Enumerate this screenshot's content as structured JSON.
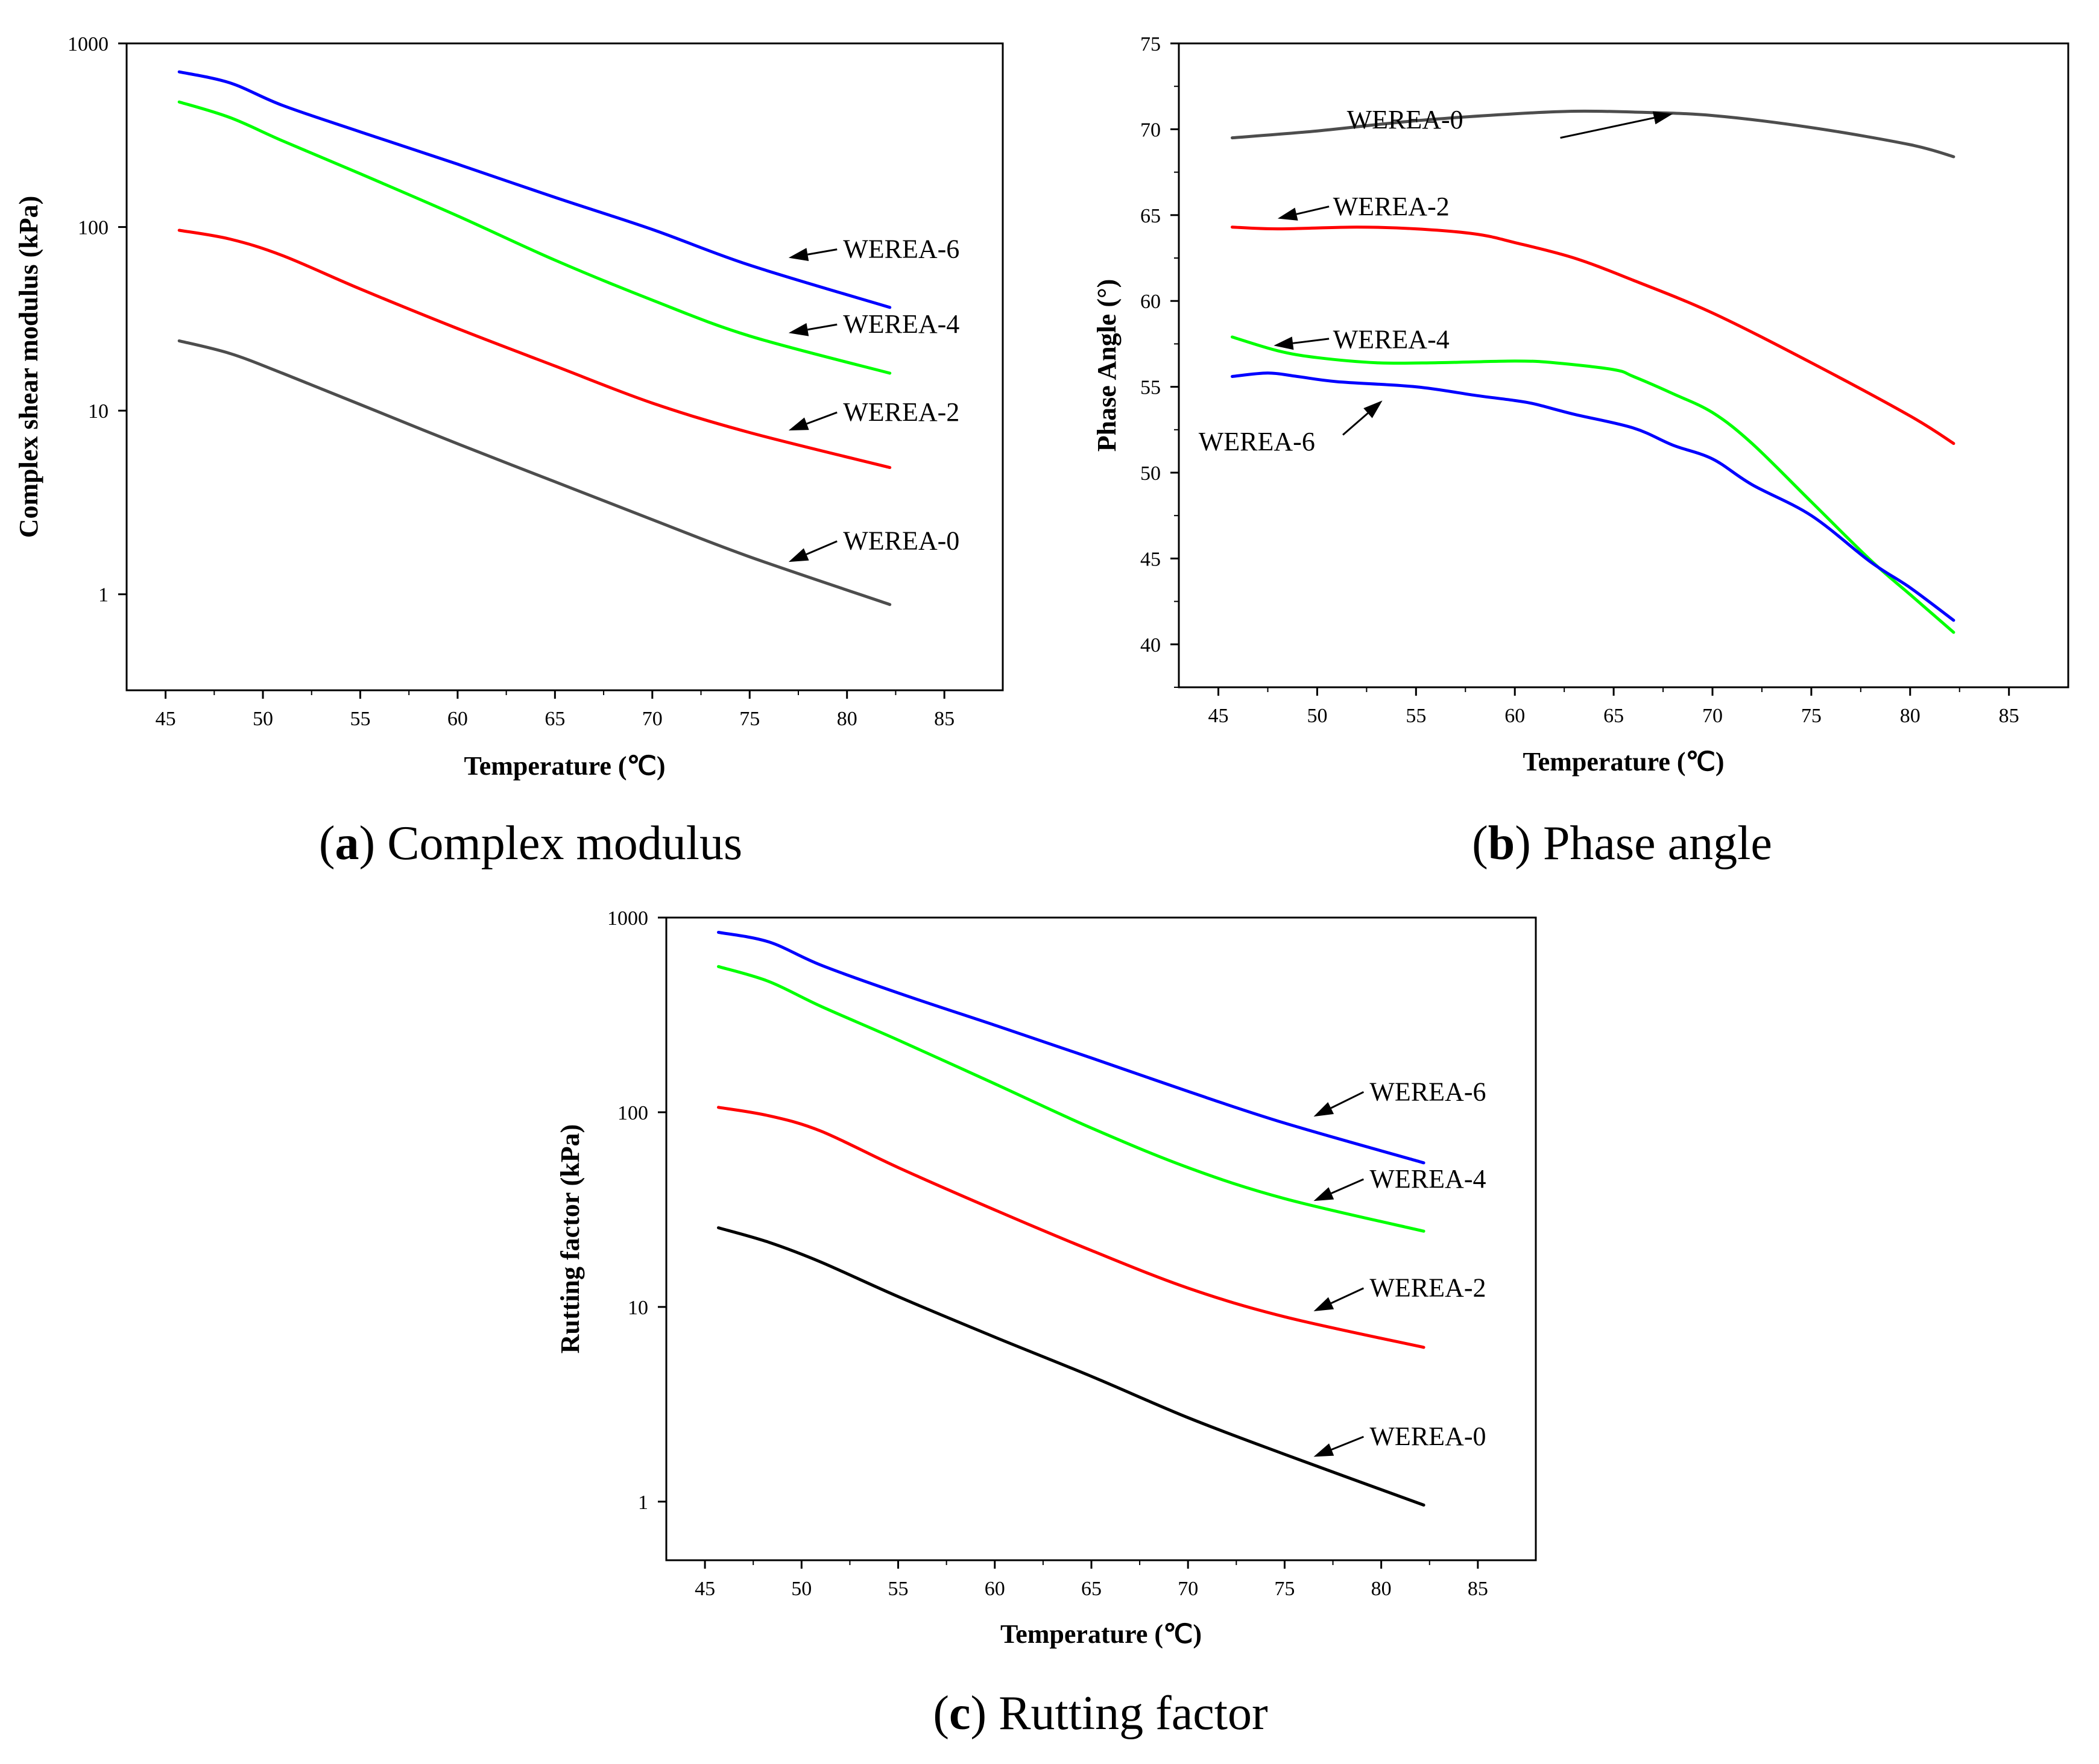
{
  "chart_data": [
    {
      "id": "a",
      "type": "line",
      "caption_letter": "a",
      "caption_text": "Complex modulus",
      "xlabel": "Temperature (℃)",
      "ylabel": "Complex shear modulus (kPa)",
      "yscale": "log",
      "xlim": [
        43,
        88
      ],
      "ylim": [
        0.3,
        1000
      ],
      "xticks": [
        45,
        50,
        55,
        60,
        65,
        70,
        75,
        80,
        85
      ],
      "yticks": [
        1,
        10,
        100,
        1000
      ],
      "series": [
        {
          "name": "WEREA-6",
          "color": "#0000ff",
          "x": [
            45.7,
            48.3,
            51,
            55,
            60,
            65,
            70,
            75,
            82.2
          ],
          "values": [
            700,
            610,
            460,
            330,
            220,
            145,
            97,
            62,
            36.5
          ],
          "label_at": [
            77,
            68
          ],
          "label_text_at": [
            79.8,
            68
          ]
        },
        {
          "name": "WEREA-4",
          "color": "#00ff00",
          "x": [
            45.7,
            48.3,
            51,
            55,
            60,
            65,
            70,
            75,
            82.2
          ],
          "values": [
            480,
            395,
            295,
            195,
            115,
            66,
            40,
            25.5,
            16
          ],
          "label_at": [
            77,
            26.5
          ],
          "label_text_at": [
            79.8,
            26.5
          ]
        },
        {
          "name": "WEREA-2",
          "color": "#ff0000",
          "x": [
            45.7,
            48.3,
            51,
            55,
            60,
            65,
            70,
            75,
            82.2
          ],
          "values": [
            96,
            86,
            70,
            46,
            28,
            17.5,
            11,
            7.6,
            4.9
          ],
          "label_at": [
            77,
            7.8
          ],
          "label_text_at": [
            79.8,
            8.8
          ]
        },
        {
          "name": "WEREA-0",
          "color": "#4d4d4d",
          "x": [
            45.7,
            48.3,
            51,
            55,
            60,
            65,
            70,
            75,
            82.2
          ],
          "values": [
            24,
            20.5,
            16,
            10.8,
            6.6,
            4.1,
            2.55,
            1.6,
            0.88
          ],
          "label_at": [
            77,
            1.5
          ],
          "label_text_at": [
            79.8,
            1.75
          ]
        }
      ]
    },
    {
      "id": "b",
      "type": "line",
      "caption_letter": "b",
      "caption_text": "Phase angle",
      "xlabel": "Temperature (℃)",
      "ylabel": "Phase Angle (°)",
      "yscale": "linear",
      "xlim": [
        43,
        88
      ],
      "ylim": [
        37.5,
        75
      ],
      "xticks": [
        45,
        50,
        55,
        60,
        65,
        70,
        75,
        80,
        85
      ],
      "yticks": [
        40,
        45,
        50,
        55,
        60,
        65,
        70,
        75
      ],
      "series": [
        {
          "name": "WEREA-0",
          "color": "#4d4d4d",
          "x": [
            45.7,
            50,
            55,
            60,
            63,
            66,
            70,
            75,
            80,
            82.2
          ],
          "values": [
            69.5,
            69.9,
            70.5,
            70.9,
            71.05,
            71.0,
            70.8,
            70.1,
            69.1,
            68.4
          ]
        },
        {
          "name": "WEREA-2",
          "color": "#ff0000",
          "x": [
            45.7,
            48,
            52,
            55,
            58,
            60,
            63,
            66,
            70,
            75,
            80,
            82.2
          ],
          "values": [
            64.3,
            64.2,
            64.3,
            64.2,
            63.9,
            63.4,
            62.5,
            61.2,
            59.3,
            56.4,
            53.3,
            51.7
          ]
        },
        {
          "name": "WEREA-4",
          "color": "#00ff00",
          "x": [
            45.7,
            48,
            50,
            53,
            56,
            60,
            62,
            65,
            66,
            68,
            70,
            72,
            75,
            78,
            80,
            82.2
          ],
          "values": [
            57.9,
            57.1,
            56.7,
            56.4,
            56.4,
            56.5,
            56.4,
            56.0,
            55.6,
            54.6,
            53.5,
            51.7,
            48.3,
            44.9,
            42.9,
            40.7
          ]
        },
        {
          "name": "WEREA-6",
          "color": "#0000ff",
          "x": [
            45.7,
            47.5,
            49,
            51,
            55,
            58,
            60,
            61,
            63,
            66,
            68,
            70,
            72,
            75,
            78,
            80,
            82.2
          ],
          "values": [
            55.6,
            55.8,
            55.6,
            55.3,
            55.0,
            54.5,
            54.2,
            54.0,
            53.4,
            52.6,
            51.6,
            50.8,
            49.3,
            47.5,
            44.8,
            43.3,
            41.4
          ]
        }
      ],
      "labels": [
        {
          "name": "WEREA-0",
          "text_at": [
            51.5,
            70.05
          ],
          "arrow_from": [
            62.3,
            69.5
          ],
          "arrow_to": [
            68,
            70.9
          ]
        },
        {
          "name": "WEREA-2",
          "text_at": [
            50.8,
            65.0
          ],
          "arrow_from": [
            50.6,
            65.5
          ],
          "arrow_to": [
            48,
            64.8
          ]
        },
        {
          "name": "WEREA-4",
          "text_at": [
            50.8,
            57.25
          ],
          "arrow_from": [
            50.6,
            57.8
          ],
          "arrow_to": [
            47.8,
            57.4
          ]
        },
        {
          "name": "WEREA-6",
          "text_at": [
            44,
            51.3
          ],
          "arrow_from": [
            51.3,
            52.2
          ],
          "arrow_to": [
            53.3,
            54.2
          ]
        }
      ]
    },
    {
      "id": "c",
      "type": "line",
      "caption_letter": "c",
      "caption_text": "Rutting factor",
      "xlabel": "Temperature (℃)",
      "ylabel": "Rutting factor (kPa)",
      "yscale": "log",
      "xlim": [
        43,
        88
      ],
      "ylim": [
        0.5,
        1000
      ],
      "xticks": [
        45,
        50,
        55,
        60,
        65,
        70,
        75,
        80,
        85
      ],
      "yticks": [
        1,
        10,
        100,
        1000
      ],
      "series": [
        {
          "name": "WEREA-6",
          "color": "#0000ff",
          "x": [
            45.7,
            48.3,
            51,
            55,
            60,
            65,
            70,
            75,
            82.2
          ],
          "values": [
            840,
            750,
            570,
            410,
            280,
            190,
            128,
            88,
            55
          ],
          "label_at": [
            76.5,
            95
          ],
          "label_text_at": [
            79.4,
            115
          ]
        },
        {
          "name": "WEREA-4",
          "color": "#00ff00",
          "x": [
            45.7,
            48.3,
            51,
            55,
            60,
            65,
            70,
            75,
            82.2
          ],
          "values": [
            560,
            470,
            350,
            235,
            140,
            83,
            52,
            36,
            24.5
          ],
          "label_at": [
            76.5,
            35
          ],
          "label_text_at": [
            79.4,
            41
          ]
        },
        {
          "name": "WEREA-2",
          "color": "#ff0000",
          "x": [
            45.7,
            48.3,
            51,
            55,
            60,
            65,
            70,
            75,
            82.2
          ],
          "values": [
            106,
            96,
            80,
            52,
            31.5,
            19.5,
            12.5,
            8.9,
            6.2
          ],
          "label_at": [
            76.5,
            9.5
          ],
          "label_text_at": [
            79.4,
            11.3
          ]
        },
        {
          "name": "WEREA-0",
          "color": "#000000",
          "x": [
            45.7,
            48.3,
            51,
            55,
            60,
            65,
            70,
            75,
            82.2
          ],
          "values": [
            25.5,
            21.5,
            17,
            11.3,
            7,
            4.4,
            2.7,
            1.75,
            0.96
          ],
          "label_at": [
            76.5,
            1.7
          ],
          "label_text_at": [
            79.4,
            1.95
          ]
        }
      ]
    }
  ]
}
